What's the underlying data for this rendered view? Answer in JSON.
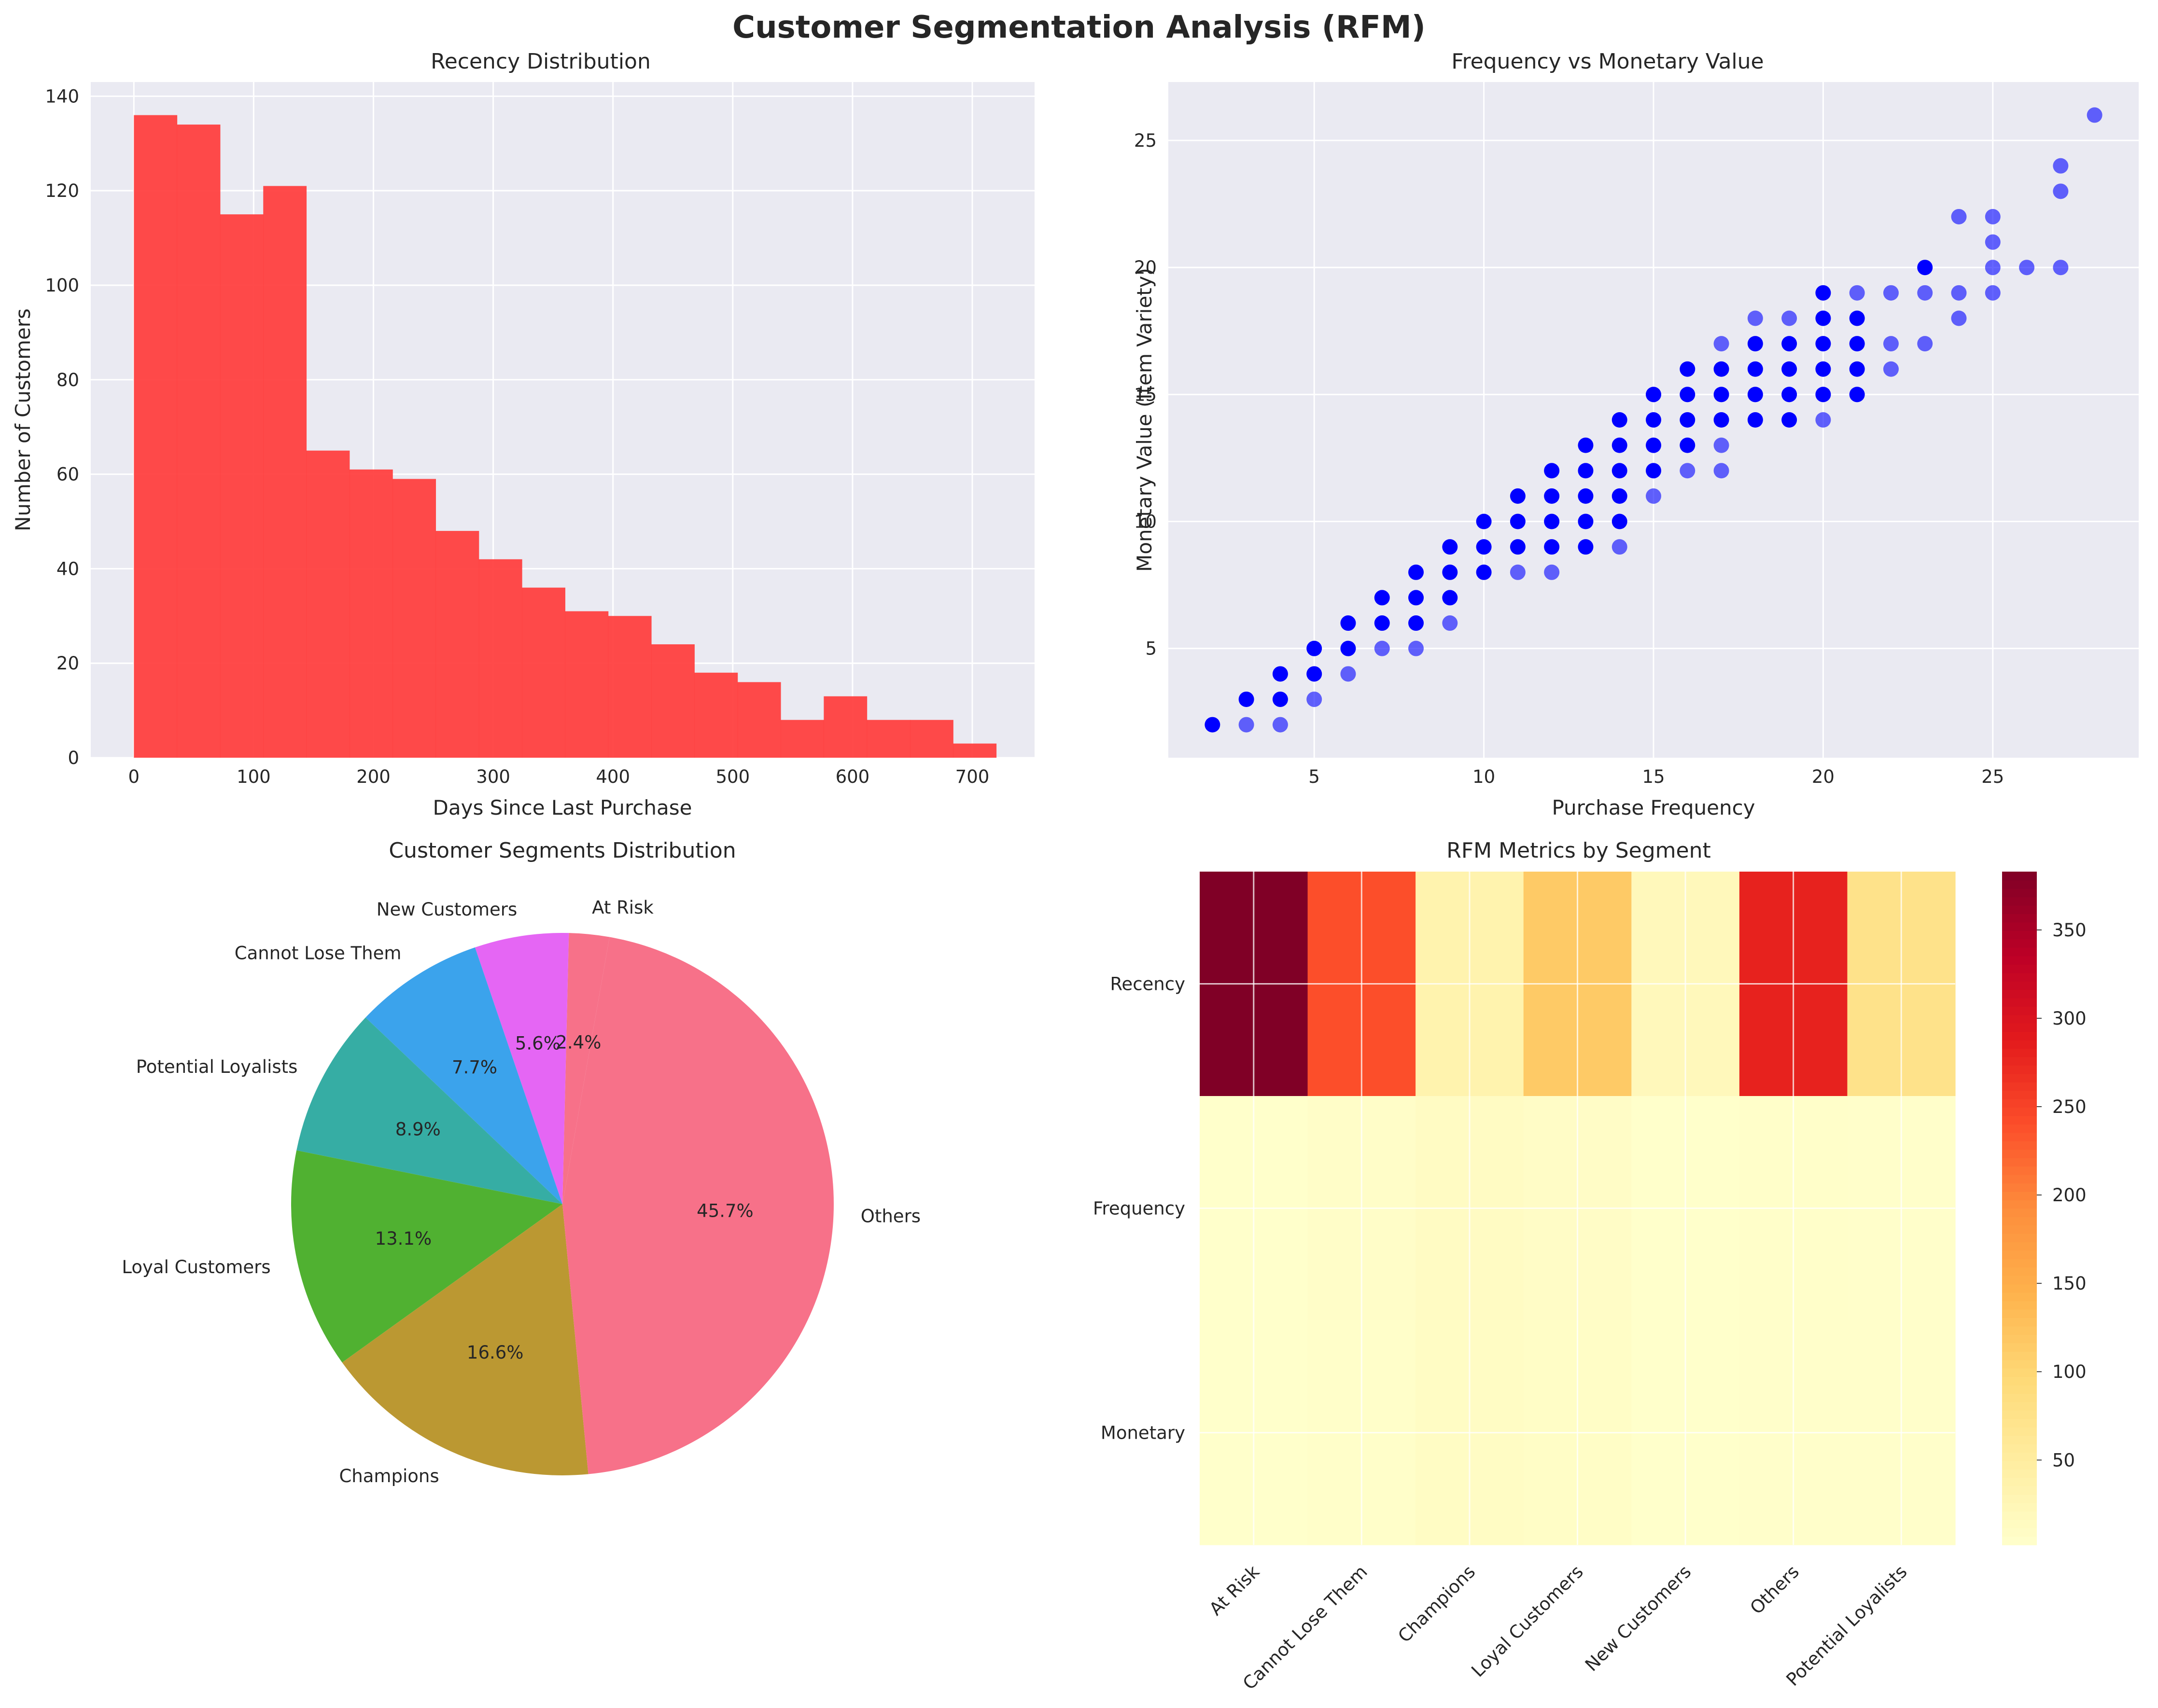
{
  "suptitle": "Customer Segmentation Analysis (RFM)",
  "chart_data": [
    {
      "id": "hist",
      "type": "bar",
      "title": "Recency Distribution",
      "xlabel": "Days Since Last Purchase",
      "ylabel": "Number of Customers",
      "xlim": [
        -36,
        752
      ],
      "ylim": [
        0,
        143
      ],
      "xticks": [
        0,
        100,
        200,
        300,
        400,
        500,
        600,
        700
      ],
      "yticks": [
        0,
        20,
        40,
        60,
        80,
        100,
        120,
        140
      ],
      "bin_edges": [
        0,
        36,
        72,
        108,
        144,
        180,
        216,
        252,
        288,
        324,
        360,
        396,
        432,
        468,
        504,
        540,
        576,
        612,
        648,
        684,
        720
      ],
      "values": [
        136,
        134,
        115,
        121,
        65,
        61,
        59,
        48,
        42,
        36,
        31,
        30,
        24,
        18,
        16,
        8,
        13,
        8,
        8,
        3
      ],
      "color": "#ff3b3b",
      "grid": true
    },
    {
      "id": "scatter",
      "type": "scatter",
      "title": "Frequency vs Monetary Value",
      "xlabel": "Purchase Frequency",
      "ylabel": "Monetary Value (Item Variety)",
      "xlim": [
        0.7,
        29.3
      ],
      "ylim": [
        0.7,
        27.3
      ],
      "xticks": [
        5,
        10,
        15,
        20,
        25
      ],
      "yticks": [
        5,
        10,
        15,
        20,
        25
      ],
      "color": "#0000ff",
      "grid": true,
      "points": [
        [
          2,
          2,
          1
        ],
        [
          3,
          2,
          0
        ],
        [
          3,
          3,
          1
        ],
        [
          4,
          2,
          0
        ],
        [
          4,
          3,
          1
        ],
        [
          4,
          4,
          1
        ],
        [
          5,
          3,
          0
        ],
        [
          5,
          4,
          1
        ],
        [
          5,
          5,
          1
        ],
        [
          6,
          4,
          0
        ],
        [
          6,
          5,
          1
        ],
        [
          6,
          6,
          1
        ],
        [
          7,
          5,
          0
        ],
        [
          7,
          6,
          1
        ],
        [
          7,
          7,
          1
        ],
        [
          8,
          5,
          0
        ],
        [
          8,
          6,
          1
        ],
        [
          8,
          7,
          1
        ],
        [
          8,
          8,
          1
        ],
        [
          9,
          6,
          0
        ],
        [
          9,
          7,
          1
        ],
        [
          9,
          8,
          1
        ],
        [
          9,
          9,
          1
        ],
        [
          10,
          8,
          1
        ],
        [
          10,
          9,
          1
        ],
        [
          10,
          10,
          1
        ],
        [
          11,
          8,
          0
        ],
        [
          11,
          9,
          1
        ],
        [
          11,
          10,
          1
        ],
        [
          11,
          11,
          1
        ],
        [
          12,
          8,
          0
        ],
        [
          12,
          9,
          1
        ],
        [
          12,
          10,
          1
        ],
        [
          12,
          11,
          1
        ],
        [
          12,
          12,
          1
        ],
        [
          13,
          9,
          1
        ],
        [
          13,
          10,
          1
        ],
        [
          13,
          11,
          1
        ],
        [
          13,
          12,
          1
        ],
        [
          13,
          13,
          1
        ],
        [
          14,
          9,
          0
        ],
        [
          14,
          10,
          1
        ],
        [
          14,
          11,
          1
        ],
        [
          14,
          12,
          1
        ],
        [
          14,
          13,
          1
        ],
        [
          14,
          14,
          1
        ],
        [
          15,
          11,
          0
        ],
        [
          15,
          12,
          1
        ],
        [
          15,
          13,
          1
        ],
        [
          15,
          14,
          1
        ],
        [
          15,
          15,
          1
        ],
        [
          16,
          12,
          0
        ],
        [
          16,
          13,
          1
        ],
        [
          16,
          14,
          1
        ],
        [
          16,
          15,
          1
        ],
        [
          16,
          16,
          1
        ],
        [
          17,
          12,
          0
        ],
        [
          17,
          13,
          0
        ],
        [
          17,
          14,
          1
        ],
        [
          17,
          15,
          1
        ],
        [
          17,
          16,
          1
        ],
        [
          17,
          17,
          0
        ],
        [
          18,
          14,
          1
        ],
        [
          18,
          15,
          1
        ],
        [
          18,
          16,
          1
        ],
        [
          18,
          17,
          1
        ],
        [
          18,
          18,
          0
        ],
        [
          19,
          14,
          1
        ],
        [
          19,
          15,
          1
        ],
        [
          19,
          16,
          1
        ],
        [
          19,
          17,
          1
        ],
        [
          19,
          18,
          0
        ],
        [
          20,
          14,
          0
        ],
        [
          20,
          15,
          1
        ],
        [
          20,
          16,
          1
        ],
        [
          20,
          17,
          1
        ],
        [
          20,
          18,
          1
        ],
        [
          20,
          19,
          1
        ],
        [
          21,
          15,
          1
        ],
        [
          21,
          16,
          1
        ],
        [
          21,
          17,
          1
        ],
        [
          21,
          18,
          1
        ],
        [
          21,
          19,
          0
        ],
        [
          22,
          16,
          0
        ],
        [
          22,
          17,
          0
        ],
        [
          22,
          19,
          0
        ],
        [
          23,
          17,
          0
        ],
        [
          23,
          19,
          0
        ],
        [
          23,
          20,
          1
        ],
        [
          24,
          18,
          0
        ],
        [
          24,
          19,
          0
        ],
        [
          24,
          22,
          0
        ],
        [
          25,
          19,
          0
        ],
        [
          25,
          20,
          0
        ],
        [
          25,
          21,
          0
        ],
        [
          25,
          22,
          0
        ],
        [
          26,
          20,
          0
        ],
        [
          27,
          20,
          0
        ],
        [
          27,
          23,
          0
        ],
        [
          27,
          24,
          0
        ],
        [
          28,
          26,
          0
        ]
      ]
    },
    {
      "id": "pie",
      "type": "pie",
      "title": "Customer Segments Distribution",
      "labels": [
        "At Risk",
        "New Customers",
        "Cannot Lose Them",
        "Potential Loyalists",
        "Loyal Customers",
        "Champions",
        "Others"
      ],
      "pct_labels": [
        "2.4%",
        "5.6%",
        "7.7%",
        "8.9%",
        "13.1%",
        "16.6%",
        "45.7%"
      ],
      "values": [
        2.4,
        5.6,
        7.7,
        8.9,
        13.1,
        16.6,
        45.7
      ],
      "colors": [
        "#f77189",
        "#e566f4",
        "#3ba3ec",
        "#36ada4",
        "#50b131",
        "#bb9832",
        "#f77189"
      ],
      "startangle_deg": 80
    },
    {
      "id": "heatmap",
      "type": "heatmap",
      "title": "RFM Metrics by Segment",
      "rows": [
        "Recency",
        "Frequency",
        "Monetary"
      ],
      "columns": [
        "At Risk",
        "Cannot Lose Them",
        "Champions",
        "Loyal Customers",
        "New Customers",
        "Others",
        "Potential Loyalists"
      ],
      "values": [
        [
          383,
          240,
          35,
          115,
          20,
          280,
          75
        ],
        [
          3,
          6,
          12,
          9,
          3,
          5,
          4
        ],
        [
          3,
          5,
          11,
          8,
          3,
          4,
          4
        ]
      ],
      "colorbar_range": [
        2,
        383
      ],
      "colorbar_ticks": [
        50,
        100,
        150,
        200,
        250,
        300,
        350
      ],
      "colormap": "YlOrRd"
    }
  ]
}
